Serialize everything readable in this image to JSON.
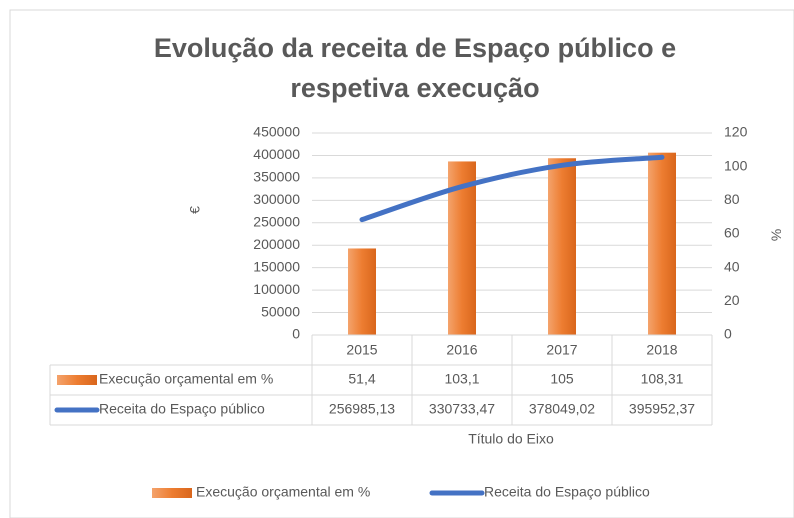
{
  "chart_data": {
    "type": "bar",
    "title": [
      "Evolução da receita de Espaço público e",
      "respetiva execução"
    ],
    "categories": [
      "2015",
      "2016",
      "2017",
      "2018"
    ],
    "series": [
      {
        "name": "Execução orçamental em %",
        "type": "bar",
        "axis": "y2",
        "color": "#ed7d31",
        "values": [
          51.4,
          103.1,
          105,
          108.31
        ],
        "value_labels": [
          "51,4",
          "103,1",
          "105",
          "108,31"
        ]
      },
      {
        "name": "Receita do Espaço público",
        "type": "line",
        "axis": "y",
        "color": "#4472c4",
        "values": [
          256985.13,
          330733.47,
          378049.02,
          395952.37
        ],
        "value_labels": [
          "256985,13",
          "330733,47",
          "378049,02",
          "395952,37"
        ]
      }
    ],
    "x_label": "Título do Eixo",
    "y_label": "€",
    "y2_label": "%",
    "ylim": [
      0,
      450000
    ],
    "yticks": [
      0,
      50000,
      100000,
      150000,
      200000,
      250000,
      300000,
      350000,
      400000,
      450000
    ],
    "y2lim": [
      0,
      120
    ],
    "y2ticks": [
      0,
      20,
      40,
      60,
      80,
      100,
      120
    ],
    "grid": true,
    "legend": "bottom"
  }
}
